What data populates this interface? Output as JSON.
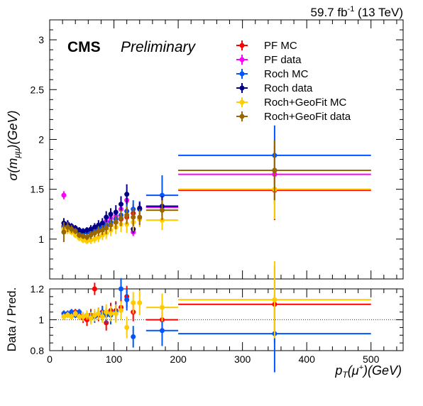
{
  "header": {
    "lumi_prefix": "59.7 fb",
    "lumi_sup": "-1",
    "lumi_suffix": " (13 TeV)",
    "cms": "CMS",
    "preliminary": "Preliminary"
  },
  "axes": {
    "ylabel_top": "σ(m",
    "ylabel_top_sub": "μμ",
    "ylabel_top_suffix": ")(GeV)",
    "ylabel_bottom": "Data / Pred.",
    "xlabel_p": "p",
    "xlabel_sub": "T",
    "xlabel_mid": "(μ",
    "xlabel_sup": "+",
    "xlabel_end": ")(GeV)"
  },
  "colors": {
    "PF MC": "#ff0000",
    "PF data": "#ff00ff",
    "Roch MC": "#0055ff",
    "Roch data": "#00008b",
    "Roch+GeoFit MC": "#ffcc00",
    "Roch+GeoFit data": "#996600"
  },
  "chart_data": [
    {
      "type": "scatter",
      "title": "",
      "xlim": [
        0,
        550
      ],
      "ylim": [
        0.6,
        3.2
      ],
      "yticks": [
        "1",
        "1.5",
        "2",
        "2.5",
        "3"
      ],
      "legend_position": "top-right",
      "series": [
        {
          "name": "PF MC",
          "color": "#ff0000",
          "points": [
            [
              22,
              1.13,
              0.07
            ],
            [
              28,
              1.12,
              0.04
            ],
            [
              34,
              1.1,
              0.03
            ],
            [
              40,
              1.08,
              0.03
            ],
            [
              46,
              1.06,
              0.03
            ],
            [
              52,
              1.06,
              0.03
            ],
            [
              58,
              1.07,
              0.03
            ],
            [
              64,
              1.06,
              0.04
            ],
            [
              70,
              1.09,
              0.04
            ],
            [
              76,
              1.1,
              0.05
            ],
            [
              82,
              1.12,
              0.05
            ],
            [
              88,
              1.13,
              0.06
            ],
            [
              95,
              1.15,
              0.06
            ],
            [
              103,
              1.17,
              0.07
            ],
            [
              111,
              1.2,
              0.08
            ],
            [
              120,
              1.22,
              0.09
            ],
            [
              130,
              1.26,
              0.09
            ],
            [
              140,
              1.3,
              0.08
            ],
            [
              175,
              1.32,
              0.1
            ],
            [
              350,
              1.49,
              0.3
            ]
          ],
          "xerr_wide": [
            [
              150,
              200,
              1.32
            ],
            [
              200,
              500,
              1.49
            ]
          ]
        },
        {
          "name": "PF data",
          "color": "#ff00ff",
          "points": [
            [
              22,
              1.44,
              0.04
            ],
            [
              28,
              1.14,
              0.04
            ],
            [
              34,
              1.12,
              0.03
            ],
            [
              40,
              1.11,
              0.03
            ],
            [
              46,
              1.08,
              0.03
            ],
            [
              52,
              1.07,
              0.03
            ],
            [
              58,
              1.07,
              0.03
            ],
            [
              64,
              1.08,
              0.04
            ],
            [
              70,
              1.1,
              0.04
            ],
            [
              76,
              1.12,
              0.05
            ],
            [
              82,
              1.14,
              0.05
            ],
            [
              88,
              1.18,
              0.06
            ],
            [
              95,
              1.21,
              0.06
            ],
            [
              103,
              1.23,
              0.07
            ],
            [
              111,
              1.3,
              0.08
            ],
            [
              120,
              1.39,
              0.09
            ],
            [
              130,
              1.07,
              0.04
            ],
            [
              140,
              1.31,
              0.06
            ],
            [
              175,
              1.32,
              0.1
            ],
            [
              350,
              1.65,
              0.3
            ]
          ],
          "xerr_wide": [
            [
              150,
              200,
              1.32
            ],
            [
              200,
              500,
              1.65
            ]
          ]
        },
        {
          "name": "Roch MC",
          "color": "#0055ff",
          "points": [
            [
              22,
              1.12,
              0.06
            ],
            [
              28,
              1.11,
              0.04
            ],
            [
              34,
              1.09,
              0.03
            ],
            [
              40,
              1.08,
              0.03
            ],
            [
              46,
              1.06,
              0.03
            ],
            [
              52,
              1.06,
              0.03
            ],
            [
              58,
              1.07,
              0.03
            ],
            [
              64,
              1.07,
              0.04
            ],
            [
              70,
              1.1,
              0.04
            ],
            [
              76,
              1.11,
              0.05
            ],
            [
              82,
              1.13,
              0.05
            ],
            [
              88,
              1.14,
              0.06
            ],
            [
              95,
              1.17,
              0.06
            ],
            [
              103,
              1.2,
              0.07
            ],
            [
              111,
              1.24,
              0.08
            ],
            [
              120,
              1.28,
              0.09
            ],
            [
              130,
              1.3,
              0.09
            ],
            [
              140,
              1.3,
              0.08
            ],
            [
              175,
              1.44,
              0.2
            ],
            [
              350,
              1.84,
              0.3
            ]
          ],
          "xerr_wide": [
            [
              150,
              200,
              1.44
            ],
            [
              200,
              500,
              1.84
            ]
          ]
        },
        {
          "name": "Roch data",
          "color": "#00008b",
          "points": [
            [
              22,
              1.16,
              0.05
            ],
            [
              28,
              1.15,
              0.04
            ],
            [
              34,
              1.13,
              0.03
            ],
            [
              40,
              1.11,
              0.03
            ],
            [
              46,
              1.09,
              0.03
            ],
            [
              52,
              1.08,
              0.03
            ],
            [
              58,
              1.09,
              0.03
            ],
            [
              64,
              1.1,
              0.04
            ],
            [
              70,
              1.12,
              0.04
            ],
            [
              76,
              1.14,
              0.05
            ],
            [
              82,
              1.16,
              0.05
            ],
            [
              88,
              1.22,
              0.06
            ],
            [
              95,
              1.25,
              0.06
            ],
            [
              103,
              1.27,
              0.07
            ],
            [
              111,
              1.35,
              0.08
            ],
            [
              120,
              1.45,
              0.1
            ],
            [
              130,
              1.1,
              0.04
            ],
            [
              140,
              1.31,
              0.06
            ],
            [
              175,
              1.33,
              0.1
            ],
            [
              350,
              1.69,
              0.3
            ]
          ],
          "xerr_wide": [
            [
              150,
              200,
              1.33
            ],
            [
              200,
              500,
              1.69
            ]
          ]
        },
        {
          "name": "Roch+GeoFit MC",
          "color": "#ffcc00",
          "points": [
            [
              22,
              1.1,
              0.06
            ],
            [
              28,
              1.09,
              0.04
            ],
            [
              34,
              1.07,
              0.03
            ],
            [
              40,
              1.04,
              0.03
            ],
            [
              46,
              1.01,
              0.03
            ],
            [
              52,
              0.99,
              0.03
            ],
            [
              58,
              0.98,
              0.03
            ],
            [
              64,
              0.99,
              0.04
            ],
            [
              70,
              1.0,
              0.04
            ],
            [
              76,
              1.02,
              0.05
            ],
            [
              82,
              1.04,
              0.05
            ],
            [
              88,
              1.06,
              0.06
            ],
            [
              95,
              1.09,
              0.06
            ],
            [
              103,
              1.12,
              0.07
            ],
            [
              111,
              1.15,
              0.08
            ],
            [
              120,
              1.15,
              0.09
            ],
            [
              130,
              1.17,
              0.09
            ],
            [
              140,
              1.2,
              0.08
            ],
            [
              175,
              1.19,
              0.1
            ],
            [
              350,
              1.5,
              0.3
            ]
          ],
          "xerr_wide": [
            [
              150,
              200,
              1.19
            ],
            [
              200,
              500,
              1.5
            ]
          ]
        },
        {
          "name": "Roch+GeoFit data",
          "color": "#996600",
          "points": [
            [
              22,
              1.07,
              0.1
            ],
            [
              28,
              1.12,
              0.05
            ],
            [
              34,
              1.1,
              0.04
            ],
            [
              40,
              1.08,
              0.03
            ],
            [
              46,
              1.04,
              0.03
            ],
            [
              52,
              1.03,
              0.03
            ],
            [
              58,
              1.02,
              0.03
            ],
            [
              64,
              1.04,
              0.04
            ],
            [
              70,
              1.06,
              0.04
            ],
            [
              76,
              1.08,
              0.05
            ],
            [
              82,
              1.09,
              0.05
            ],
            [
              88,
              1.11,
              0.06
            ],
            [
              95,
              1.14,
              0.06
            ],
            [
              103,
              1.17,
              0.07
            ],
            [
              111,
              1.21,
              0.08
            ],
            [
              120,
              1.24,
              0.09
            ],
            [
              130,
              1.22,
              0.09
            ],
            [
              140,
              1.22,
              0.08
            ],
            [
              175,
              1.29,
              0.1
            ],
            [
              350,
              1.69,
              0.3
            ]
          ],
          "xerr_wide": [
            [
              150,
              200,
              1.29
            ],
            [
              200,
              500,
              1.69
            ]
          ]
        }
      ]
    },
    {
      "type": "scatter",
      "title": "",
      "xlim": [
        0,
        550
      ],
      "ylim": [
        0.8,
        1.2
      ],
      "xticks": [
        "0",
        "100",
        "200",
        "300",
        "400",
        "500"
      ],
      "yticks": [
        "0.8",
        "1",
        "1.2"
      ],
      "reference_line": 1.0,
      "series": [
        {
          "name": "PF",
          "color": "#ff0000",
          "points": [
            [
              22,
              1.04,
              0.02
            ],
            [
              28,
              1.04,
              0.02
            ],
            [
              34,
              1.03,
              0.02
            ],
            [
              40,
              1.05,
              0.02
            ],
            [
              46,
              1.03,
              0.02
            ],
            [
              52,
              1.01,
              0.03
            ],
            [
              58,
              1.0,
              0.04
            ],
            [
              64,
              1.03,
              0.04
            ],
            [
              70,
              1.2,
              0.04
            ],
            [
              76,
              1.03,
              0.04
            ],
            [
              82,
              1.05,
              0.04
            ],
            [
              88,
              0.98,
              0.05
            ],
            [
              95,
              1.06,
              0.05
            ],
            [
              103,
              1.06,
              0.06
            ],
            [
              111,
              1.08,
              0.07
            ],
            [
              120,
              1.15,
              0.07
            ],
            [
              130,
              1.05,
              0.06
            ],
            [
              175,
              1.0,
              0.08
            ],
            [
              350,
              1.1,
              0.25
            ]
          ],
          "xerr_wide": [
            [
              150,
              200,
              1.0
            ],
            [
              200,
              500,
              1.1
            ]
          ]
        },
        {
          "name": "Roch",
          "color": "#0055ff",
          "points": [
            [
              22,
              1.04,
              0.02
            ],
            [
              28,
              1.04,
              0.02
            ],
            [
              34,
              1.05,
              0.02
            ],
            [
              40,
              1.03,
              0.02
            ],
            [
              46,
              1.05,
              0.02
            ],
            [
              52,
              1.02,
              0.03
            ],
            [
              58,
              1.03,
              0.03
            ],
            [
              64,
              1.02,
              0.04
            ],
            [
              70,
              1.02,
              0.04
            ],
            [
              76,
              1.04,
              0.04
            ],
            [
              82,
              1.04,
              0.05
            ],
            [
              88,
              1.03,
              0.05
            ],
            [
              95,
              1.03,
              0.06
            ],
            [
              103,
              1.05,
              0.06
            ],
            [
              111,
              1.2,
              0.07
            ],
            [
              120,
              1.13,
              0.07
            ],
            [
              130,
              0.89,
              0.07
            ],
            [
              175,
              0.93,
              0.1
            ],
            [
              350,
              0.91,
              0.25
            ]
          ],
          "xerr_wide": [
            [
              150,
              200,
              0.93
            ],
            [
              200,
              500,
              0.91
            ]
          ]
        },
        {
          "name": "Roch+GeoFit",
          "color": "#ffcc00",
          "points": [
            [
              22,
              1.02,
              0.02
            ],
            [
              28,
              1.03,
              0.02
            ],
            [
              34,
              1.02,
              0.02
            ],
            [
              40,
              1.04,
              0.02
            ],
            [
              46,
              1.02,
              0.02
            ],
            [
              52,
              1.02,
              0.03
            ],
            [
              58,
              1.03,
              0.03
            ],
            [
              64,
              1.01,
              0.04
            ],
            [
              70,
              1.03,
              0.04
            ],
            [
              76,
              1.04,
              0.04
            ],
            [
              82,
              1.02,
              0.04
            ],
            [
              88,
              1.05,
              0.05
            ],
            [
              95,
              1.04,
              0.05
            ],
            [
              103,
              1.04,
              0.06
            ],
            [
              111,
              1.06,
              0.06
            ],
            [
              120,
              0.95,
              0.07
            ],
            [
              130,
              1.11,
              0.07
            ],
            [
              140,
              1.11,
              0.08
            ],
            [
              175,
              1.08,
              0.09
            ],
            [
              350,
              1.13,
              0.25
            ]
          ],
          "xerr_wide": [
            [
              150,
              200,
              1.08
            ],
            [
              200,
              500,
              1.13
            ]
          ]
        }
      ]
    }
  ]
}
